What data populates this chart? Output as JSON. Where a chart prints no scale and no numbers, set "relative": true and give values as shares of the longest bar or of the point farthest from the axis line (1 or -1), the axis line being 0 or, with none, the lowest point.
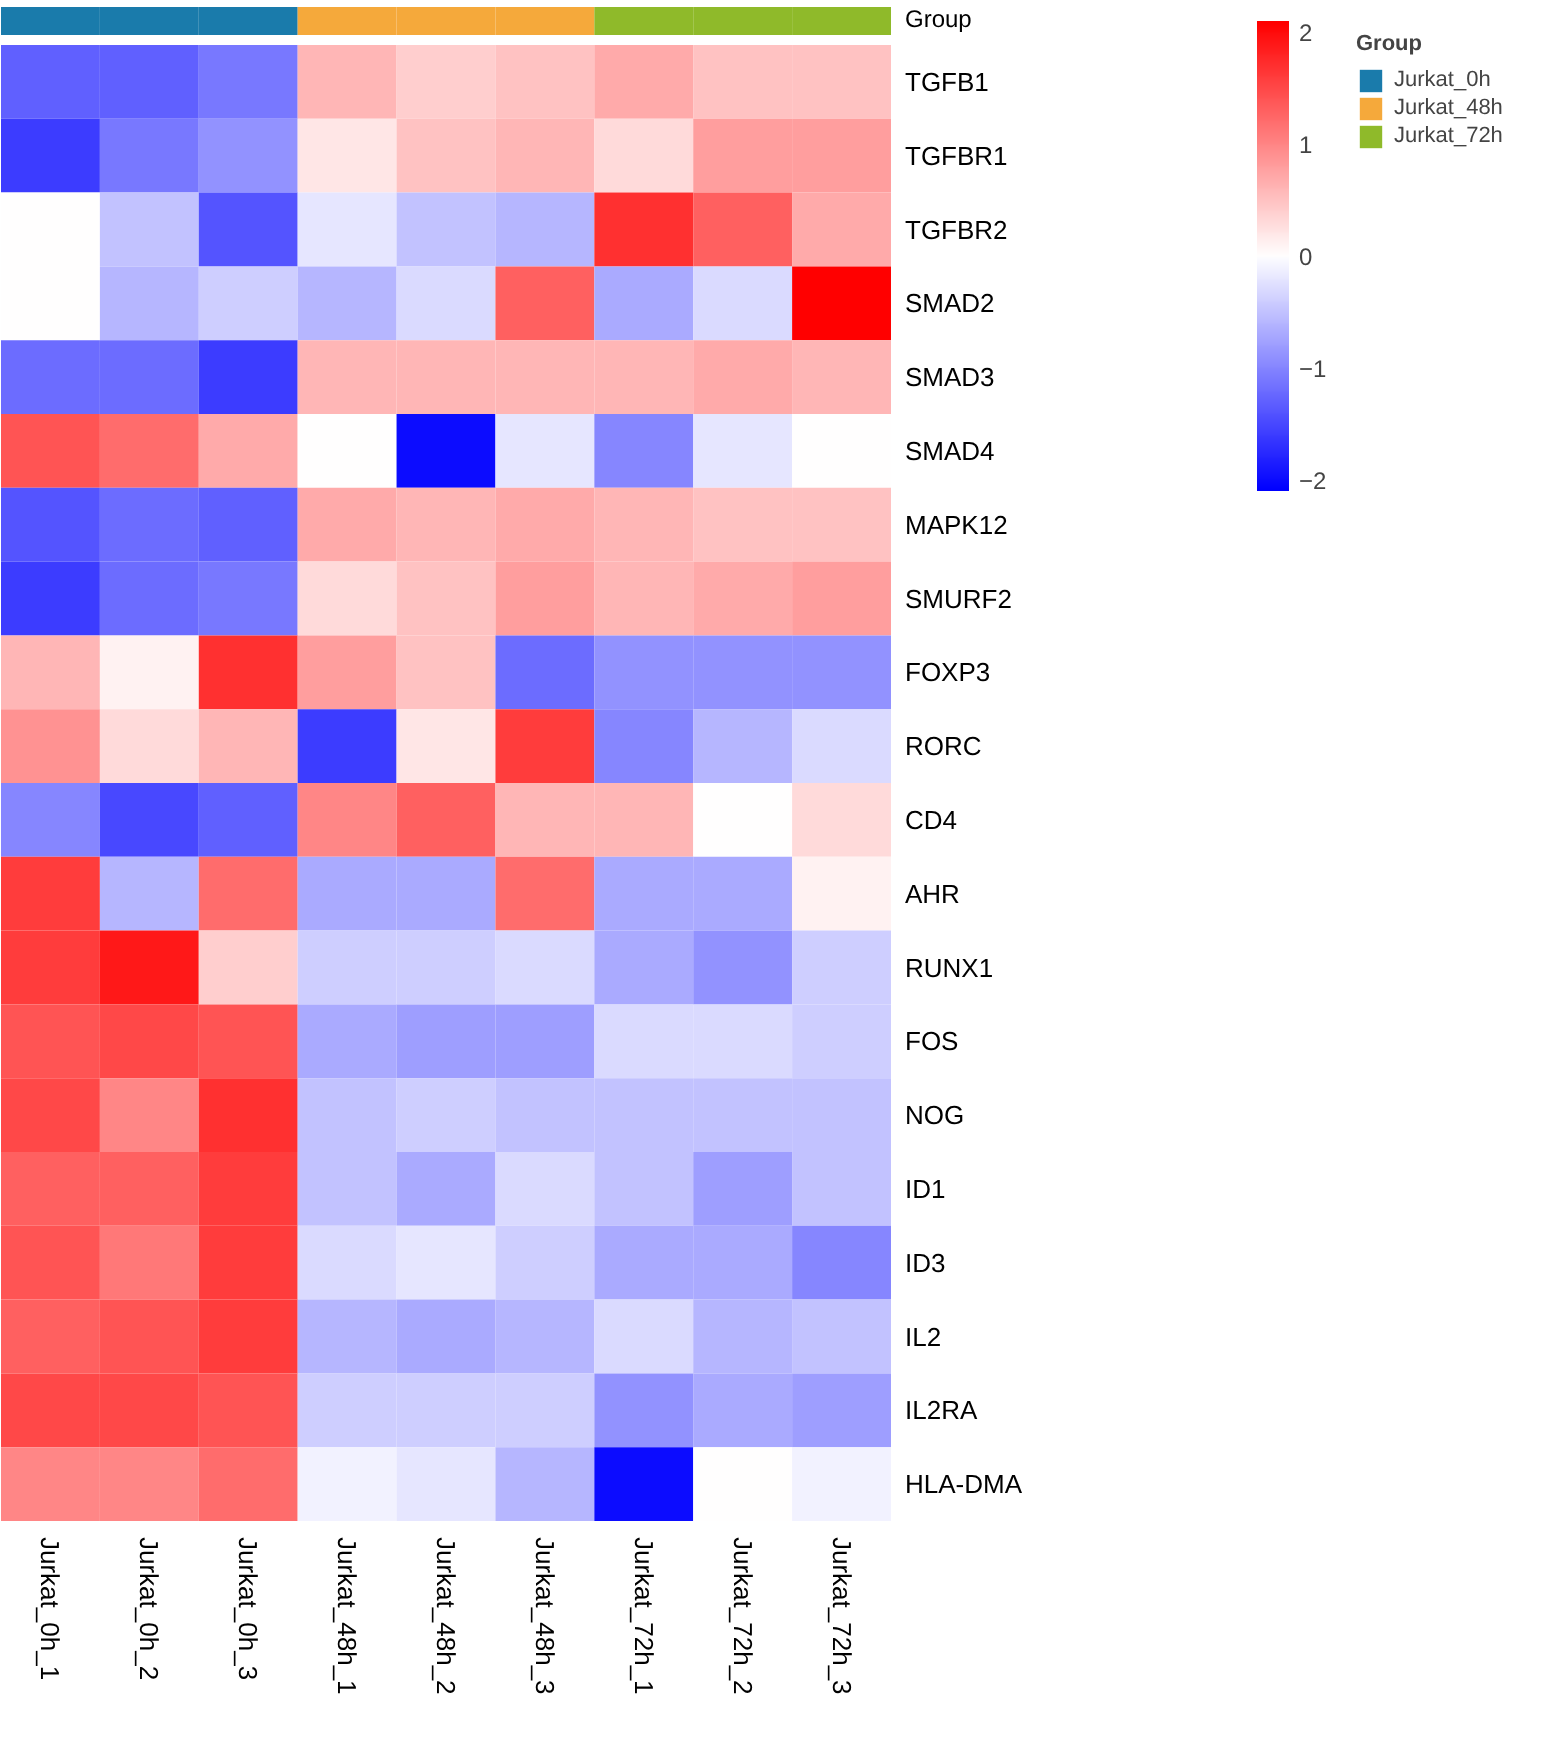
{
  "chart_data": [
    {
      "type": "bar",
      "relative": true,
      "categories": [
        null,
        null,
        null,
        null,
        null,
        null,
        null,
        null,
        null
      ],
      "ylabel": "Group",
      "stacked": true,
      "legend": "right",
      "legend_title": "Group",
      "series": [
        {
          "name": "Jurkat_0h",
          "color": "#1a7bab",
          "values": [
            1,
            1,
            1,
            null,
            null,
            null,
            null,
            null,
            null
          ]
        },
        {
          "name": "Jurkat_48h",
          "color": "#f5a93b",
          "values": [
            null,
            null,
            null,
            1,
            1,
            1,
            null,
            null,
            null
          ]
        },
        {
          "name": "Jurkat_72h",
          "color": "#8fba2a",
          "values": [
            null,
            null,
            null,
            null,
            null,
            null,
            1,
            1,
            1
          ]
        }
      ]
    },
    {
      "type": "heatmap",
      "categories": [
        "Jurkat_0h_1",
        "Jurkat_0h_2",
        "Jurkat_0h_3",
        "Jurkat_48h_1",
        "Jurkat_48h_2",
        "Jurkat_48h_3",
        "Jurkat_72h_1",
        "Jurkat_72h_2",
        "Jurkat_72h_3"
      ],
      "y_categories": [
        "TGFB1",
        "TGFBR1",
        "TGFBR2",
        "SMAD2",
        "SMAD3",
        "SMAD4",
        "MAPK12",
        "SMURF2",
        "FOXP3",
        "RORC",
        "CD4",
        "AHR",
        "RUNX1",
        "FOS",
        "NOG",
        "ID1",
        "ID3",
        "IL2",
        "IL2RA",
        "HLA-DMA"
      ],
      "cells": [
        [
          -1.3,
          -1.3,
          -1.1,
          0.6,
          0.4,
          0.5,
          0.7,
          0.5,
          0.5
        ],
        [
          -1.6,
          -1.1,
          -0.9,
          0.2,
          0.5,
          0.6,
          0.3,
          0.8,
          0.8
        ],
        [
          0.0,
          -0.5,
          -1.4,
          -0.2,
          -0.5,
          -0.6,
          1.7,
          1.3,
          0.7
        ],
        [
          0.0,
          -0.6,
          -0.4,
          -0.6,
          -0.3,
          1.3,
          -0.7,
          -0.3,
          2.1
        ],
        [
          -1.2,
          -1.2,
          -1.6,
          0.6,
          0.6,
          0.6,
          0.6,
          0.7,
          0.6
        ],
        [
          1.4,
          1.2,
          0.7,
          0.0,
          -2.0,
          -0.2,
          -1.0,
          -0.2,
          0.0
        ],
        [
          -1.4,
          -1.2,
          -1.3,
          0.7,
          0.6,
          0.7,
          0.6,
          0.5,
          0.5
        ],
        [
          -1.6,
          -1.2,
          -1.1,
          0.3,
          0.5,
          0.8,
          0.6,
          0.7,
          0.8
        ],
        [
          0.6,
          0.1,
          1.7,
          0.8,
          0.5,
          -1.2,
          -0.9,
          -0.9,
          -0.9
        ],
        [
          0.9,
          0.3,
          0.6,
          -1.6,
          0.2,
          1.6,
          -1.0,
          -0.6,
          -0.3
        ],
        [
          -1.0,
          -1.5,
          -1.3,
          1.0,
          1.3,
          0.6,
          0.6,
          0.0,
          0.3
        ],
        [
          1.6,
          -0.6,
          1.2,
          -0.7,
          -0.7,
          1.2,
          -0.7,
          -0.7,
          0.1
        ],
        [
          1.6,
          1.9,
          0.4,
          -0.4,
          -0.4,
          -0.3,
          -0.7,
          -0.9,
          -0.4
        ],
        [
          1.4,
          1.5,
          1.4,
          -0.7,
          -0.8,
          -0.8,
          -0.3,
          -0.3,
          -0.4
        ],
        [
          1.5,
          1.0,
          1.7,
          -0.5,
          -0.4,
          -0.5,
          -0.5,
          -0.5,
          -0.5
        ],
        [
          1.3,
          1.3,
          1.6,
          -0.5,
          -0.7,
          -0.3,
          -0.5,
          -0.8,
          -0.5
        ],
        [
          1.4,
          1.1,
          1.6,
          -0.3,
          -0.2,
          -0.4,
          -0.7,
          -0.7,
          -1.0
        ],
        [
          1.3,
          1.4,
          1.6,
          -0.6,
          -0.7,
          -0.6,
          -0.3,
          -0.6,
          -0.5
        ],
        [
          1.5,
          1.5,
          1.4,
          -0.4,
          -0.4,
          -0.4,
          -0.9,
          -0.7,
          -0.8
        ],
        [
          1.0,
          1.0,
          1.2,
          -0.1,
          -0.2,
          -0.6,
          -2.0,
          0.0,
          -0.1
        ]
      ],
      "clim": [
        -2.1,
        2.1
      ],
      "cticks": [
        -2,
        -1,
        0,
        1,
        2
      ]
    }
  ]
}
